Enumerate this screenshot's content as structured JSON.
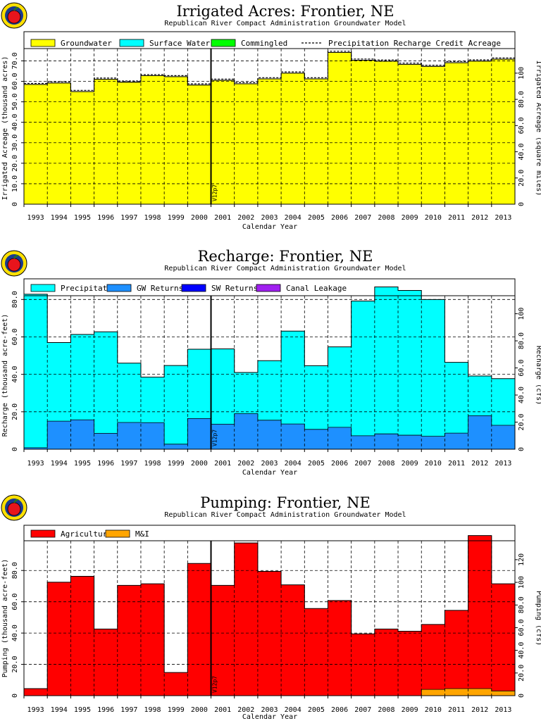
{
  "colors": {
    "groundwater": "#ffff00",
    "surface_water": "#00ffff",
    "commingled": "#00ff00",
    "precipitation": "#00ffff",
    "gw_returns": "#1e90ff",
    "sw_returns": "#0000ff",
    "canal_leakage": "#a020f0",
    "agricultural": "#ff0000",
    "mi": "#ffa500",
    "logo_red": "#e8141c",
    "logo_yellow": "#ffe000",
    "logo_blue": "#1a3a8f"
  },
  "version_label": "V12p7",
  "chart_data": [
    {
      "id": "irrigated",
      "type": "area",
      "title": "Irrigated Acres: Frontier, NE",
      "subtitle": "Republican River Compact Administration Groundwater Model",
      "xlabel": "Calendar Year",
      "ylabel": "Irrigated Acreage (thousand acres)",
      "ylabel_right": "Irrigated Acreage (square miles)",
      "categories": [
        "1993",
        "1994",
        "1995",
        "1996",
        "1997",
        "1998",
        "1999",
        "2000",
        "2001",
        "2002",
        "2003",
        "2004",
        "2005",
        "2006",
        "2007",
        "2008",
        "2009",
        "2010",
        "2011",
        "2012",
        "2013"
      ],
      "ylim": [
        0,
        76
      ],
      "yticks": [
        "10.0",
        "20.0",
        "30.0",
        "40.0",
        "50.0",
        "60.0",
        "70.0"
      ],
      "ylim_right": [
        0,
        118.75
      ],
      "yticks_right": [
        "20.0",
        "40.0",
        "60.0",
        "80.0",
        "100"
      ],
      "grid": true,
      "legend_position": "top",
      "legend": [
        "Groundwater",
        "Surface Water",
        "Commingled",
        "Precipitation Recharge Credit Acreage"
      ],
      "series": [
        {
          "name": "Groundwater",
          "values": [
            58.5,
            59.2,
            55.0,
            61.0,
            59.6,
            62.8,
            62.3,
            58.2,
            60.5,
            58.8,
            61.2,
            64.0,
            61.2,
            74.1,
            70.3,
            69.8,
            68.3,
            67.3,
            69.1,
            69.9,
            70.8
          ]
        },
        {
          "name": "Surface Water",
          "values": [
            0,
            0,
            0,
            0,
            0,
            0,
            0,
            0,
            0,
            0,
            0,
            0,
            0,
            0,
            0,
            0,
            0,
            0,
            0,
            0,
            0
          ]
        },
        {
          "name": "Commingled",
          "values": [
            0,
            0,
            0,
            0,
            0,
            0,
            0,
            0,
            0,
            0,
            0,
            0,
            0,
            0,
            0,
            0,
            0,
            0,
            0,
            0,
            0
          ]
        },
        {
          "name": "Precipitation Recharge Credit Acreage",
          "values": [
            59.0,
            59.8,
            55.6,
            61.6,
            60.2,
            63.3,
            62.8,
            58.8,
            61.1,
            59.4,
            61.8,
            64.6,
            61.8,
            74.7,
            70.9,
            70.4,
            68.9,
            67.9,
            69.7,
            70.5,
            71.4
          ]
        }
      ]
    },
    {
      "id": "recharge",
      "type": "area",
      "title": "Recharge: Frontier, NE",
      "subtitle": "Republican River Compact Administration Groundwater Model",
      "xlabel": "Calendar Year",
      "ylabel": "Recharge (thousand acre-feet)",
      "ylabel_right": "Recharge (cfs)",
      "categories": [
        "1993",
        "1994",
        "1995",
        "1996",
        "1997",
        "1998",
        "1999",
        "2000",
        "2001",
        "2002",
        "2003",
        "2004",
        "2005",
        "2006",
        "2007",
        "2008",
        "2009",
        "2010",
        "2011",
        "2012",
        "2013"
      ],
      "ylim": [
        0,
        82
      ],
      "yticks": [
        "20.0",
        "40.0",
        "60.0",
        "80.0"
      ],
      "ylim_right": [
        0,
        113.3
      ],
      "yticks_right": [
        "20.0",
        "40.0",
        "60.0",
        "80.0",
        "100"
      ],
      "grid": true,
      "legend_position": "top",
      "legend": [
        "Precipitation",
        "GW Returns",
        "SW Returns",
        "Canal Leakage"
      ],
      "series": [
        {
          "name": "GW Returns",
          "values": [
            0.8,
            15.0,
            15.7,
            8.5,
            14.3,
            14.2,
            2.7,
            16.4,
            13.4,
            19.0,
            15.5,
            13.5,
            10.6,
            11.7,
            7.2,
            8.2,
            7.5,
            6.9,
            8.6,
            17.9,
            12.8
          ]
        },
        {
          "name": "Precipitation",
          "values": [
            82.0,
            42.0,
            45.6,
            54.2,
            31.7,
            24.3,
            42.0,
            37.0,
            40.2,
            22.0,
            31.8,
            49.6,
            34.0,
            43.0,
            72.0,
            78.5,
            77.3,
            73.1,
            37.8,
            21.2,
            24.9
          ]
        },
        {
          "name": "SW Returns",
          "values": [
            0,
            0,
            0,
            0,
            0,
            0,
            0,
            0,
            0,
            0,
            0,
            0,
            0,
            0,
            0,
            0,
            0,
            0,
            0,
            0,
            0
          ]
        },
        {
          "name": "Canal Leakage",
          "values": [
            0,
            0,
            0,
            0,
            0,
            0,
            0,
            0,
            0,
            0,
            0,
            0,
            0,
            0,
            0,
            0,
            0,
            0,
            0,
            0,
            0
          ]
        }
      ]
    },
    {
      "id": "pumping",
      "type": "area",
      "title": "Pumping: Frontier, NE",
      "subtitle": "Republican River Compact Administration Groundwater Model",
      "xlabel": "Calendar Year",
      "ylabel": "Pumping (thousand acre-feet)",
      "ylabel_right": "Pumping (cfs)",
      "categories": [
        "1993",
        "1994",
        "1995",
        "1996",
        "1997",
        "1998",
        "1999",
        "2000",
        "2001",
        "2002",
        "2003",
        "2004",
        "2005",
        "2006",
        "2007",
        "2008",
        "2009",
        "2010",
        "2011",
        "2012",
        "2013"
      ],
      "ylim": [
        0,
        99
      ],
      "yticks": [
        "20.0",
        "40.0",
        "60.0",
        "80.0"
      ],
      "ylim_right": [
        0,
        136.7
      ],
      "yticks_right": [
        "20.0",
        "40.0",
        "60.0",
        "80.0",
        "100",
        "120"
      ],
      "grid": true,
      "legend_position": "top",
      "legend": [
        "Agricultural",
        "M&I"
      ],
      "series": [
        {
          "name": "M&I",
          "values": [
            0,
            0,
            0,
            0,
            0,
            0,
            0,
            0,
            0,
            0,
            0,
            0,
            0,
            0,
            0,
            0,
            0,
            4.0,
            4.5,
            4.5,
            3.0
          ]
        },
        {
          "name": "Agricultural",
          "values": [
            4.5,
            72.5,
            76.3,
            42.6,
            70.5,
            71.5,
            14.8,
            84.5,
            70.5,
            97.6,
            79.4,
            70.8,
            55.7,
            60.8,
            39.5,
            42.6,
            41.2,
            41.5,
            50.0,
            97.8,
            68.5
          ]
        }
      ]
    }
  ]
}
